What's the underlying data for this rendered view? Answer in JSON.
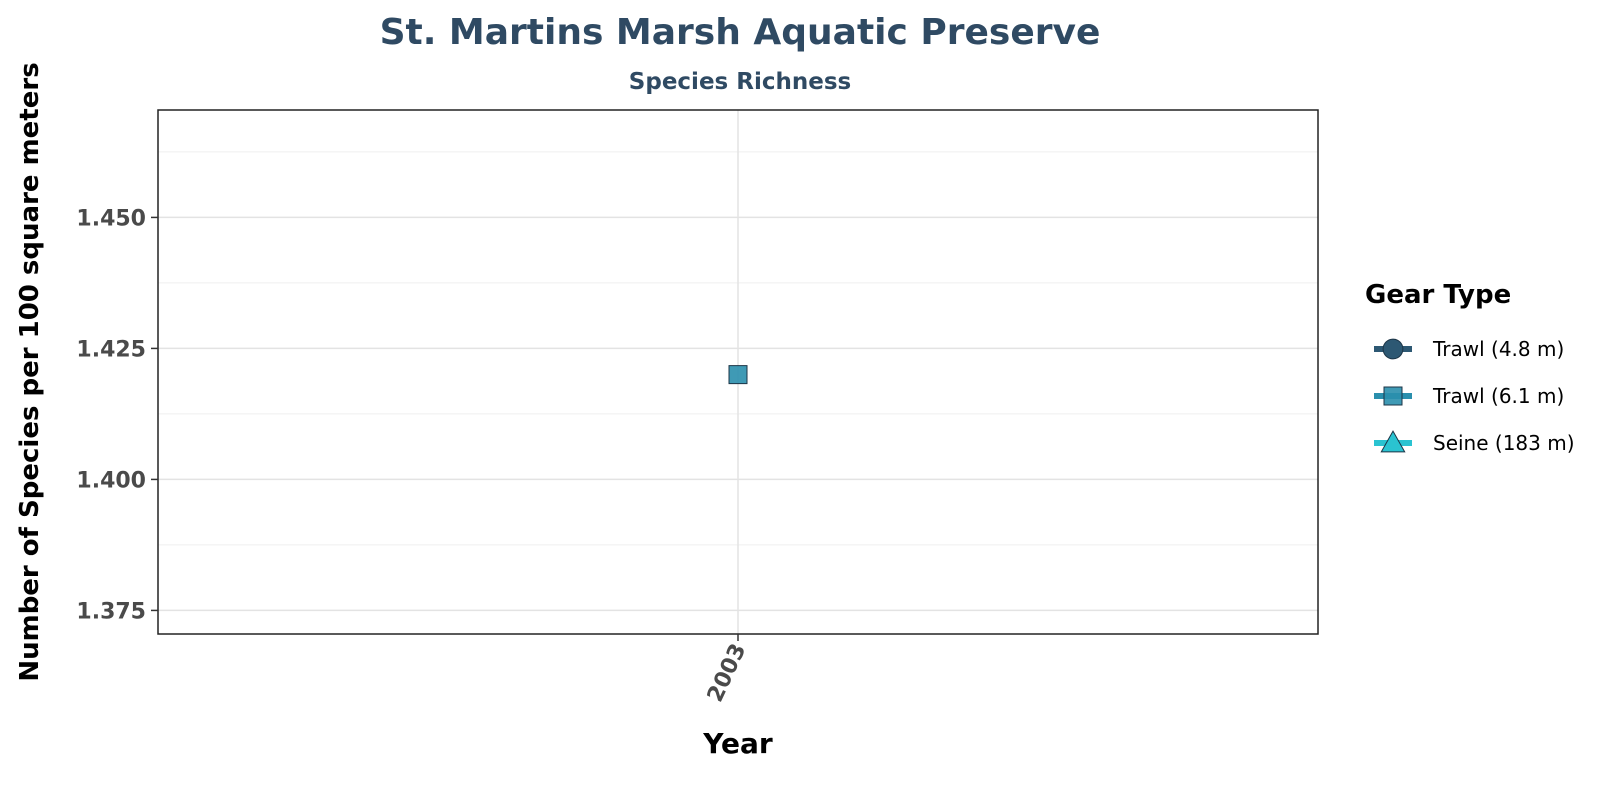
{
  "chart_data": {
    "type": "scatter",
    "title": "St. Martins Marsh Aquatic Preserve",
    "subtitle": "Species Richness",
    "xlabel": "Year",
    "ylabel": "Number of Species per 100 square meters",
    "x_categories": [
      "2003"
    ],
    "y_ticks": [
      "1.375",
      "1.400",
      "1.425",
      "1.450"
    ],
    "ylim": [
      1.3705,
      1.4705
    ],
    "grid": true,
    "legend": {
      "title": "Gear Type",
      "position": "right",
      "entries": [
        {
          "label": "Trawl (4.8 m)",
          "shape": "circle",
          "color": "#2d5873"
        },
        {
          "label": "Trawl (6.1 m)",
          "shape": "square",
          "color": "#2a8fad"
        },
        {
          "label": "Seine (183 m)",
          "shape": "triangle",
          "color": "#2ac3d1"
        }
      ]
    },
    "series": [
      {
        "name": "Trawl (6.1 m)",
        "shape": "square",
        "color": "#2a8fad",
        "points": [
          {
            "x": "2003",
            "y": 1.42
          }
        ]
      }
    ]
  }
}
